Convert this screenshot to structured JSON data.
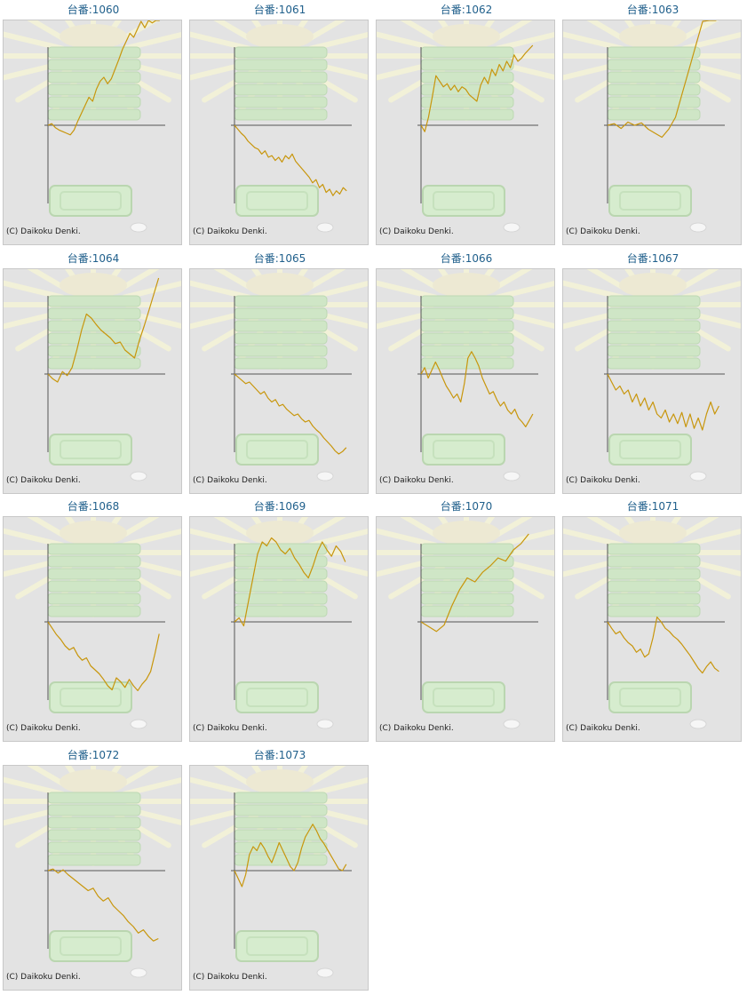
{
  "colors": {
    "line": "#c8960c",
    "axis": "#555555",
    "panel_bg": "#e3e3e3",
    "title": "#1f5f8b"
  },
  "copyright": "(C) Daikoku Denki.",
  "chart_data": [
    {
      "type": "line",
      "title": "台番:1060",
      "values": [
        0,
        0.02,
        -0.03,
        -0.06,
        -0.08,
        -0.1,
        -0.12,
        -0.06,
        0.05,
        0.15,
        0.25,
        0.35,
        0.3,
        0.45,
        0.55,
        0.6,
        0.52,
        0.58,
        0.7,
        0.82,
        0.95,
        1.05,
        1.15,
        1.1,
        1.2,
        1.3,
        1.22,
        1.35,
        1.28,
        1.4,
        1.32
      ]
    },
    {
      "type": "line",
      "title": "台番:1061",
      "values": [
        0,
        -0.05,
        -0.1,
        -0.14,
        -0.2,
        -0.24,
        -0.28,
        -0.3,
        -0.36,
        -0.32,
        -0.4,
        -0.38,
        -0.44,
        -0.4,
        -0.46,
        -0.38,
        -0.42,
        -0.36,
        -0.45,
        -0.5,
        -0.55,
        -0.6,
        -0.65,
        -0.72,
        -0.68,
        -0.78,
        -0.74,
        -0.84,
        -0.8,
        -0.88,
        -0.82,
        -0.86,
        -0.78,
        -0.82
      ]
    },
    {
      "type": "line",
      "title": "台番:1062",
      "values": [
        0,
        -0.08,
        0.1,
        0.35,
        0.62,
        0.55,
        0.48,
        0.52,
        0.44,
        0.5,
        0.42,
        0.48,
        0.45,
        0.38,
        0.34,
        0.3,
        0.5,
        0.6,
        0.52,
        0.7,
        0.62,
        0.76,
        0.68,
        0.8,
        0.72,
        0.88,
        0.8,
        0.84,
        0.9,
        0.95,
        1.0
      ]
    },
    {
      "type": "line",
      "title": "台番:1063",
      "values": [
        0,
        0.02,
        -0.04,
        0.04,
        0.0,
        0.03,
        -0.05,
        -0.1,
        -0.15,
        -0.05,
        0.1,
        0.4,
        0.7,
        1.0,
        1.3,
        1.6,
        1.9
      ]
    },
    {
      "type": "line",
      "title": "台番:1064",
      "values": [
        0,
        -0.06,
        -0.1,
        0.03,
        -0.02,
        0.08,
        0.3,
        0.55,
        0.75,
        0.7,
        0.62,
        0.55,
        0.5,
        0.45,
        0.38,
        0.4,
        0.3,
        0.25,
        0.2,
        0.42,
        0.6,
        0.8,
        1.0,
        1.2
      ]
    },
    {
      "type": "line",
      "title": "台番:1065",
      "values": [
        0,
        -0.04,
        -0.08,
        -0.12,
        -0.1,
        -0.15,
        -0.2,
        -0.25,
        -0.22,
        -0.3,
        -0.35,
        -0.32,
        -0.4,
        -0.38,
        -0.44,
        -0.48,
        -0.52,
        -0.5,
        -0.56,
        -0.6,
        -0.58,
        -0.65,
        -0.7,
        -0.74,
        -0.8,
        -0.85,
        -0.9,
        -0.96,
        -1.0,
        -0.97,
        -0.92
      ]
    },
    {
      "type": "line",
      "title": "台番:1066",
      "values": [
        0,
        0.08,
        -0.05,
        0.05,
        0.15,
        0.06,
        -0.05,
        -0.15,
        -0.22,
        -0.3,
        -0.25,
        -0.35,
        -0.12,
        0.2,
        0.28,
        0.2,
        0.1,
        -0.05,
        -0.15,
        -0.25,
        -0.22,
        -0.32,
        -0.4,
        -0.35,
        -0.45,
        -0.5,
        -0.44,
        -0.55,
        -0.6,
        -0.66,
        -0.58,
        -0.5
      ]
    },
    {
      "type": "line",
      "title": "台番:1067",
      "values": [
        0,
        -0.1,
        -0.2,
        -0.15,
        -0.25,
        -0.2,
        -0.35,
        -0.25,
        -0.4,
        -0.3,
        -0.45,
        -0.35,
        -0.5,
        -0.55,
        -0.45,
        -0.6,
        -0.5,
        -0.62,
        -0.48,
        -0.66,
        -0.5,
        -0.68,
        -0.55,
        -0.7,
        -0.5,
        -0.35,
        -0.5,
        -0.4
      ]
    },
    {
      "type": "line",
      "title": "台番:1068",
      "values": [
        0,
        -0.08,
        -0.16,
        -0.22,
        -0.3,
        -0.35,
        -0.32,
        -0.42,
        -0.48,
        -0.45,
        -0.55,
        -0.6,
        -0.65,
        -0.72,
        -0.8,
        -0.85,
        -0.7,
        -0.75,
        -0.82,
        -0.72,
        -0.8,
        -0.86,
        -0.78,
        -0.72,
        -0.62,
        -0.4,
        -0.15
      ]
    },
    {
      "type": "line",
      "title": "台番:1069",
      "values": [
        0,
        0.05,
        -0.05,
        0.25,
        0.55,
        0.85,
        1.0,
        0.95,
        1.05,
        1.0,
        0.9,
        0.85,
        0.92,
        0.8,
        0.72,
        0.62,
        0.55,
        0.7,
        0.88,
        1.0,
        0.9,
        0.82,
        0.95,
        0.88,
        0.75
      ]
    },
    {
      "type": "line",
      "title": "台番:1070",
      "values": [
        0,
        -0.06,
        -0.12,
        -0.04,
        0.2,
        0.4,
        0.55,
        0.5,
        0.62,
        0.7,
        0.8,
        0.76,
        0.9,
        0.98,
        1.1
      ]
    },
    {
      "type": "line",
      "title": "台番:1071",
      "values": [
        0,
        -0.08,
        -0.15,
        -0.12,
        -0.2,
        -0.26,
        -0.3,
        -0.38,
        -0.34,
        -0.44,
        -0.4,
        -0.2,
        0.06,
        0.0,
        -0.08,
        -0.12,
        -0.18,
        -0.22,
        -0.28,
        -0.35,
        -0.42,
        -0.5,
        -0.58,
        -0.64,
        -0.56,
        -0.5,
        -0.58,
        -0.62
      ]
    },
    {
      "type": "line",
      "title": "台番:1072",
      "values": [
        0,
        0.02,
        -0.03,
        0.01,
        -0.05,
        -0.1,
        -0.15,
        -0.2,
        -0.25,
        -0.22,
        -0.32,
        -0.38,
        -0.34,
        -0.44,
        -0.5,
        -0.56,
        -0.64,
        -0.7,
        -0.78,
        -0.74,
        -0.82,
        -0.88,
        -0.85
      ]
    },
    {
      "type": "line",
      "title": "台番:1073",
      "values": [
        0,
        -0.1,
        -0.2,
        -0.05,
        0.2,
        0.3,
        0.25,
        0.35,
        0.28,
        0.18,
        0.1,
        0.22,
        0.35,
        0.25,
        0.15,
        0.05,
        0.0,
        0.1,
        0.28,
        0.42,
        0.5,
        0.58,
        0.5,
        0.4,
        0.34,
        0.26,
        0.18,
        0.1,
        0.02,
        0.0,
        0.08
      ]
    }
  ]
}
